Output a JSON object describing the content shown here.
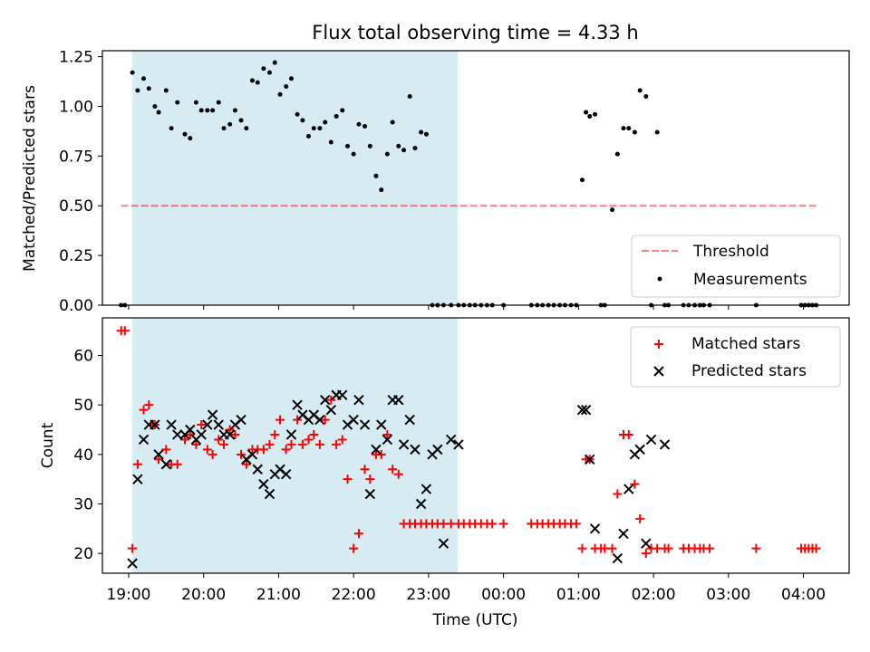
{
  "title": "Flux total observing time = 4.33 h",
  "colors": {
    "shade": "#add8e6",
    "threshold": "#ff0000",
    "measurement": "#000000",
    "matched": "#ff0000",
    "predicted": "#000000"
  },
  "chart_data": [
    {
      "type": "scatter",
      "panel": "top",
      "ylabel": "Matched/Predicted stars",
      "xlim": [
        18.65,
        28.61
      ],
      "ylim": [
        0,
        1.28
      ],
      "yticks": [
        "0.00",
        "0.25",
        "0.50",
        "0.75",
        "1.00",
        "1.25"
      ],
      "shaded_region": {
        "x": [
          19.05,
          23.39
        ]
      },
      "legend": {
        "position": "lower right",
        "entries": [
          "Threshold",
          "Measurements"
        ]
      },
      "threshold": {
        "name": "Threshold",
        "y": 0.5,
        "x": [
          18.9,
          28.17
        ],
        "style": "dashed"
      },
      "series": [
        {
          "name": "Measurements",
          "x": [
            18.9,
            18.95,
            19.05,
            19.12,
            19.2,
            19.27,
            19.35,
            19.4,
            19.5,
            19.57,
            19.65,
            19.75,
            19.82,
            19.9,
            19.97,
            20.05,
            20.12,
            20.2,
            20.27,
            20.35,
            20.42,
            20.5,
            20.57,
            20.65,
            20.72,
            20.8,
            20.88,
            20.95,
            21.02,
            21.1,
            21.17,
            21.25,
            21.32,
            21.4,
            21.47,
            21.55,
            21.62,
            21.7,
            21.77,
            21.85,
            21.92,
            22.0,
            22.07,
            22.15,
            22.22,
            22.3,
            22.37,
            22.45,
            22.52,
            22.6,
            22.67,
            22.75,
            22.82,
            22.9,
            22.97,
            23.05,
            23.12,
            23.2,
            23.3,
            23.4,
            23.47,
            23.55,
            23.62,
            23.7,
            23.78,
            23.85,
            24.0,
            24.37,
            24.45,
            24.52,
            24.6,
            24.67,
            24.75,
            24.82,
            24.9,
            24.97,
            25.05,
            25.1,
            25.15,
            25.22,
            25.3,
            25.35,
            25.45,
            25.52,
            25.6,
            25.67,
            25.75,
            25.82,
            25.9,
            25.97,
            26.05,
            26.15,
            26.2,
            26.4,
            26.47,
            26.55,
            26.62,
            26.67,
            26.75,
            27.37,
            27.97,
            28.02,
            28.07,
            28.12,
            28.17
          ],
          "y": [
            0.0,
            0.0,
            1.17,
            1.08,
            1.14,
            1.09,
            1.0,
            0.97,
            1.08,
            0.89,
            1.02,
            0.86,
            0.84,
            1.02,
            0.98,
            0.98,
            0.98,
            1.02,
            0.89,
            0.91,
            0.98,
            0.93,
            0.89,
            1.13,
            1.12,
            1.19,
            1.17,
            1.22,
            1.06,
            1.1,
            1.14,
            0.96,
            0.93,
            0.85,
            0.89,
            0.89,
            0.92,
            0.82,
            0.95,
            0.98,
            0.8,
            0.76,
            0.91,
            0.9,
            0.8,
            0.65,
            0.58,
            0.76,
            0.92,
            0.8,
            0.78,
            1.05,
            0.79,
            0.87,
            0.86,
            0.0,
            0.0,
            0.0,
            0.0,
            0.0,
            0.0,
            0.0,
            0.0,
            0.0,
            0.0,
            0.0,
            0.0,
            0.0,
            0.0,
            0.0,
            0.0,
            0.0,
            0.0,
            0.0,
            0.0,
            0.0,
            0.63,
            0.97,
            0.95,
            0.96,
            0.0,
            0.0,
            0.48,
            0.76,
            0.89,
            0.89,
            0.87,
            1.08,
            1.05,
            0.0,
            0.87,
            0.0,
            0.0,
            0.0,
            0.0,
            0.0,
            0.0,
            0.0,
            0.0,
            0.0,
            0.0,
            0.0,
            0.0,
            0.0,
            0.0
          ]
        }
      ]
    },
    {
      "type": "scatter",
      "panel": "bottom",
      "xlabel": "Time (UTC)",
      "ylabel": "Count",
      "xlim": [
        18.65,
        28.61
      ],
      "ylim": [
        16,
        67.6
      ],
      "yticks": [
        "20",
        "30",
        "40",
        "50",
        "60"
      ],
      "xticks": [
        "19:00",
        "20:00",
        "21:00",
        "22:00",
        "23:00",
        "00:00",
        "01:00",
        "02:00",
        "03:00",
        "04:00"
      ],
      "xtick_values": [
        19,
        20,
        21,
        22,
        23,
        24,
        25,
        26,
        27,
        28
      ],
      "shaded_region": {
        "x": [
          19.05,
          23.39
        ]
      },
      "legend": {
        "position": "upper right",
        "entries": [
          "Matched stars",
          "Predicted stars"
        ]
      },
      "series": [
        {
          "name": "Matched stars",
          "marker": "plus",
          "x": [
            18.9,
            18.95,
            19.05,
            19.12,
            19.2,
            19.27,
            19.35,
            19.4,
            19.5,
            19.57,
            19.65,
            19.75,
            19.82,
            19.9,
            19.97,
            20.05,
            20.12,
            20.2,
            20.27,
            20.35,
            20.42,
            20.5,
            20.57,
            20.65,
            20.72,
            20.8,
            20.88,
            20.95,
            21.02,
            21.1,
            21.17,
            21.25,
            21.32,
            21.4,
            21.47,
            21.55,
            21.62,
            21.7,
            21.77,
            21.85,
            21.92,
            22.0,
            22.07,
            22.15,
            22.22,
            22.3,
            22.37,
            22.45,
            22.52,
            22.6,
            22.67,
            22.75,
            22.82,
            22.9,
            22.97,
            23.05,
            23.12,
            23.2,
            23.3,
            23.4,
            23.47,
            23.55,
            23.62,
            23.7,
            23.78,
            23.85,
            24.0,
            24.37,
            24.45,
            24.52,
            24.6,
            24.67,
            24.75,
            24.82,
            24.9,
            24.97,
            25.05,
            25.1,
            25.15,
            25.22,
            25.3,
            25.35,
            25.45,
            25.52,
            25.6,
            25.67,
            25.75,
            25.82,
            25.9,
            25.97,
            26.05,
            26.15,
            26.2,
            26.4,
            26.47,
            26.55,
            26.62,
            26.67,
            26.75,
            27.37,
            27.97,
            28.02,
            28.07,
            28.12,
            28.17
          ],
          "y": [
            65,
            65,
            21,
            38,
            49,
            50,
            46,
            39,
            41,
            38,
            38,
            43,
            44,
            42,
            46,
            41,
            40,
            43,
            42,
            45,
            44,
            40,
            38,
            41,
            41,
            41,
            42,
            44,
            47,
            41,
            42,
            47,
            42,
            43,
            44,
            42,
            47,
            51,
            42,
            43,
            35,
            21,
            24,
            37,
            35,
            40,
            40,
            44,
            37,
            36,
            26,
            26,
            26,
            26,
            26,
            26,
            26,
            26,
            26,
            26,
            26,
            26,
            26,
            26,
            26,
            26,
            26,
            26,
            26,
            26,
            26,
            26,
            26,
            26,
            26,
            26,
            21,
            39,
            39,
            21,
            21,
            21,
            21,
            32,
            44,
            44,
            34,
            27,
            20,
            21,
            21,
            21,
            21,
            21,
            21,
            21,
            21,
            21,
            21,
            21,
            21,
            21,
            21,
            21,
            21
          ],
          "y_note_absent": []
        },
        {
          "name": "Predicted stars",
          "marker": "x",
          "x": [
            19.05,
            19.12,
            19.2,
            19.27,
            19.35,
            19.4,
            19.5,
            19.57,
            19.65,
            19.75,
            19.82,
            19.9,
            19.97,
            20.05,
            20.12,
            20.2,
            20.27,
            20.35,
            20.42,
            20.5,
            20.57,
            20.65,
            20.72,
            20.8,
            20.88,
            20.95,
            21.02,
            21.1,
            21.17,
            21.25,
            21.32,
            21.4,
            21.47,
            21.55,
            21.62,
            21.7,
            21.77,
            21.85,
            21.92,
            22.0,
            22.07,
            22.15,
            22.22,
            22.3,
            22.37,
            22.45,
            22.52,
            22.6,
            22.67,
            22.75,
            22.82,
            22.9,
            22.97,
            23.05,
            23.12,
            23.2,
            23.3,
            23.4,
            25.05,
            25.1,
            25.15,
            25.22,
            25.52,
            25.6,
            25.67,
            25.75,
            25.82,
            25.9,
            25.97,
            26.15
          ],
          "y": [
            18,
            35,
            43,
            46,
            46,
            40,
            38,
            46,
            44,
            44,
            45,
            43,
            44,
            46,
            48,
            46,
            44,
            44,
            46,
            47,
            39,
            40,
            37,
            34,
            32,
            36,
            37,
            36,
            44,
            50,
            48,
            47,
            48,
            47,
            51,
            49,
            52,
            52,
            46,
            47,
            51,
            46,
            32,
            41,
            46,
            43,
            51,
            51,
            42,
            47,
            41,
            30,
            33,
            40,
            41,
            22,
            43,
            42,
            49,
            49,
            39,
            25,
            19,
            24,
            33,
            40,
            41,
            22,
            43,
            42
          ]
        }
      ]
    }
  ]
}
